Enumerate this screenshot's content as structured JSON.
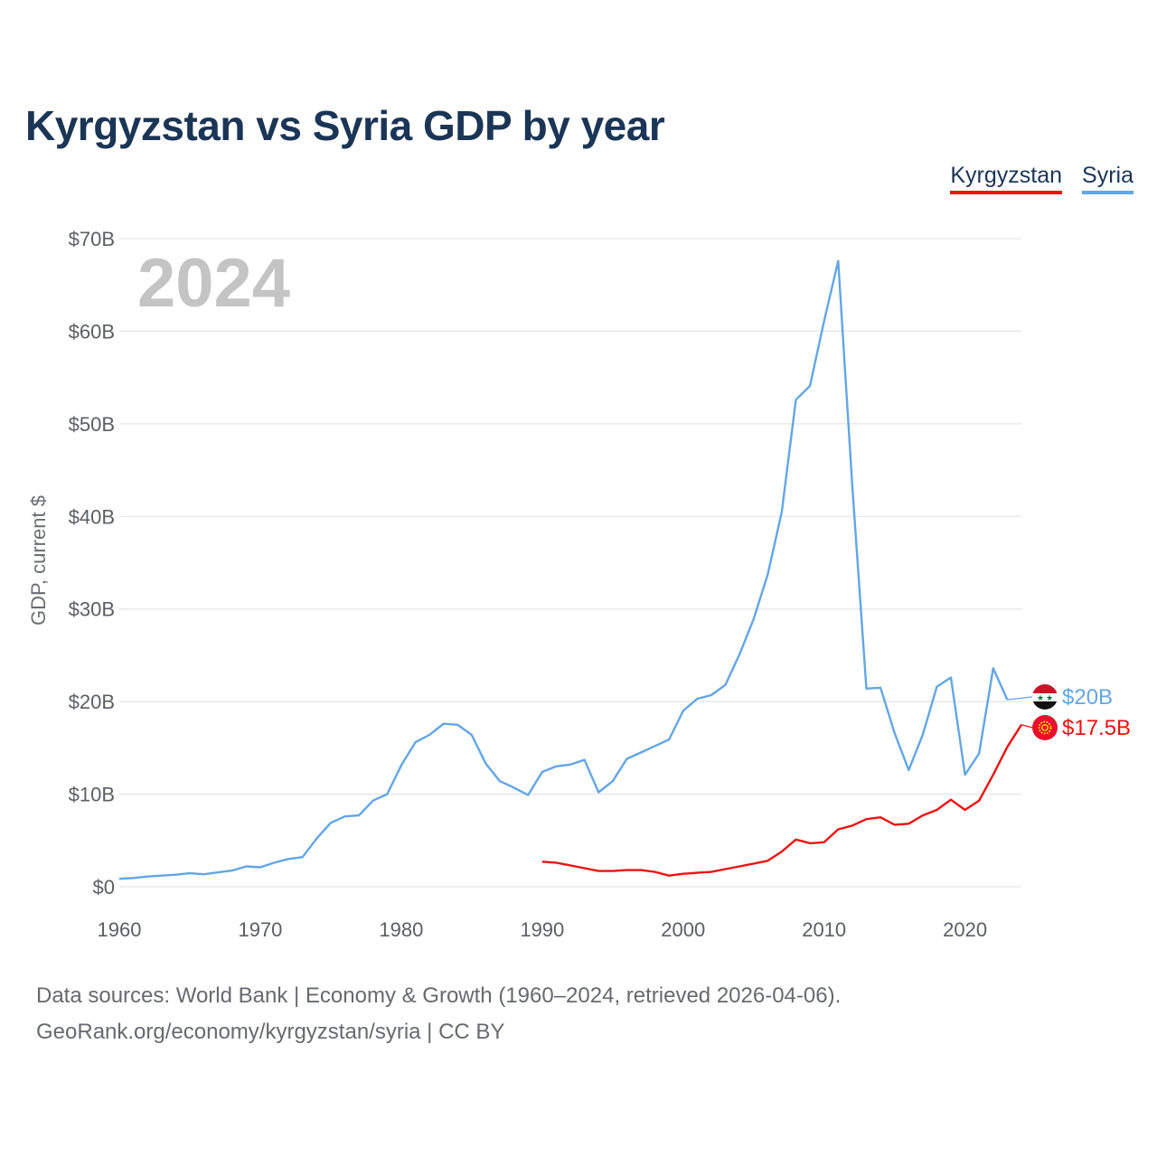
{
  "chart_data": {
    "type": "line",
    "title": "Kyrgyzstan vs Syria GDP by year",
    "ylabel": "GDP, current $",
    "xlabel": "",
    "year_label": "2024",
    "xlim": [
      1960,
      2024
    ],
    "ylim": [
      0,
      70
    ],
    "x_ticks": [
      "1960",
      "1970",
      "1980",
      "1990",
      "2000",
      "2010",
      "2020"
    ],
    "y_ticks": [
      "$0",
      "$10B",
      "$20B",
      "$30B",
      "$40B",
      "$50B",
      "$60B",
      "$70B"
    ],
    "grid": true,
    "legend_position": "top-right",
    "series": [
      {
        "name": "Kyrgyzstan",
        "color": "#ee1111",
        "end_label": "$17.5B",
        "flag_icon": "kyrgyzstan-flag-icon",
        "x": [
          1990,
          1991,
          1992,
          1993,
          1994,
          1995,
          1996,
          1997,
          1998,
          1999,
          2000,
          2001,
          2002,
          2003,
          2004,
          2005,
          2006,
          2007,
          2008,
          2009,
          2010,
          2011,
          2012,
          2013,
          2014,
          2015,
          2016,
          2017,
          2018,
          2019,
          2020,
          2021,
          2022,
          2023,
          2024
        ],
        "values": [
          2.7,
          2.6,
          2.3,
          2.0,
          1.7,
          1.7,
          1.8,
          1.8,
          1.6,
          1.2,
          1.4,
          1.5,
          1.6,
          1.9,
          2.2,
          2.5,
          2.8,
          3.8,
          5.1,
          4.7,
          4.8,
          6.2,
          6.6,
          7.3,
          7.5,
          6.7,
          6.8,
          7.7,
          8.3,
          9.4,
          8.3,
          9.3,
          12.1,
          15.1,
          17.5
        ]
      },
      {
        "name": "Syria",
        "color": "#62a6e4",
        "end_label": "$20B",
        "flag_icon": "syria-flag-icon",
        "x": [
          1960,
          1961,
          1962,
          1963,
          1964,
          1965,
          1966,
          1967,
          1968,
          1969,
          1970,
          1971,
          1972,
          1973,
          1974,
          1975,
          1976,
          1977,
          1978,
          1979,
          1980,
          1981,
          1982,
          1983,
          1984,
          1985,
          1986,
          1987,
          1988,
          1989,
          1990,
          1991,
          1992,
          1993,
          1994,
          1995,
          1996,
          1997,
          1998,
          1999,
          2000,
          2001,
          2002,
          2003,
          2004,
          2005,
          2006,
          2007,
          2008,
          2009,
          2010,
          2011,
          2012,
          2013,
          2014,
          2015,
          2016,
          2017,
          2018,
          2019,
          2020,
          2021,
          2022,
          2023
        ],
        "values": [
          0.86,
          0.95,
          1.1,
          1.2,
          1.3,
          1.45,
          1.35,
          1.55,
          1.75,
          2.2,
          2.1,
          2.6,
          3.0,
          3.2,
          5.2,
          6.9,
          7.6,
          7.7,
          9.3,
          10.0,
          13.1,
          15.6,
          16.4,
          17.6,
          17.5,
          16.4,
          13.3,
          11.4,
          10.7,
          9.9,
          12.4,
          13.0,
          13.2,
          13.7,
          10.2,
          11.4,
          13.8,
          14.5,
          15.2,
          15.9,
          19.0,
          20.3,
          20.7,
          21.8,
          25.1,
          28.9,
          33.7,
          40.5,
          52.6,
          54.1,
          61.1,
          67.6,
          43.3,
          21.4,
          21.5,
          16.6,
          12.6,
          16.4,
          21.6,
          22.6,
          12.1,
          14.4,
          23.6,
          20.2
        ]
      }
    ]
  },
  "footer": {
    "line1": "Data sources: World Bank | Economy & Growth (1960–2024, retrieved 2026-04-06).",
    "line2": "GeoRank.org/economy/kyrgyzstan/syria | CC BY"
  }
}
